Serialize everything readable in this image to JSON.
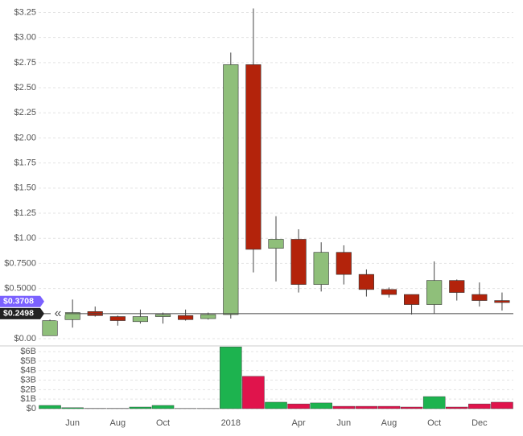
{
  "chart_data": [
    {
      "type": "candlestick",
      "categories": [
        null,
        "Jun",
        null,
        "Aug",
        null,
        "Oct",
        null,
        null,
        "2018",
        null,
        null,
        "Apr",
        null,
        "Jun",
        null,
        "Aug",
        null,
        "Oct",
        null,
        "Dec",
        null
      ],
      "open": [
        0.03,
        0.19,
        0.27,
        0.22,
        0.17,
        0.22,
        0.23,
        0.2,
        0.24,
        2.73,
        0.9,
        0.99,
        0.54,
        0.86,
        0.64,
        0.49,
        0.44,
        0.34,
        0.58,
        0.44,
        0.38
      ],
      "high": [
        0.19,
        0.39,
        0.32,
        0.23,
        0.29,
        0.26,
        0.29,
        0.26,
        2.85,
        3.29,
        1.22,
        1.09,
        0.96,
        0.93,
        0.69,
        0.51,
        0.44,
        0.77,
        0.59,
        0.56,
        0.46
      ],
      "low": [
        0.03,
        0.11,
        0.22,
        0.13,
        0.15,
        0.15,
        0.18,
        0.19,
        0.2,
        0.66,
        0.57,
        0.46,
        0.47,
        0.54,
        0.42,
        0.41,
        0.24,
        0.25,
        0.38,
        0.32,
        0.28
      ],
      "close": [
        0.18,
        0.26,
        0.23,
        0.18,
        0.22,
        0.24,
        0.19,
        0.24,
        2.73,
        0.89,
        0.99,
        0.54,
        0.86,
        0.64,
        0.49,
        0.44,
        0.34,
        0.58,
        0.46,
        0.38,
        0.36
      ],
      "up_color": "#8fbf7a",
      "down_color": "#b3230b",
      "ylim": [
        0,
        3.35
      ],
      "yticks": [
        {
          "value": 0,
          "label": "$0.00"
        },
        {
          "value": 0.5,
          "label": "$0.5000"
        },
        {
          "value": 0.75,
          "label": "$0.7500"
        },
        {
          "value": 1,
          "label": "$1.00"
        },
        {
          "value": 1.25,
          "label": "$1.25"
        },
        {
          "value": 1.5,
          "label": "$1.50"
        },
        {
          "value": 1.75,
          "label": "$1.75"
        },
        {
          "value": 2,
          "label": "$2.00"
        },
        {
          "value": 2.25,
          "label": "$2.25"
        },
        {
          "value": 2.5,
          "label": "$2.50"
        },
        {
          "value": 2.75,
          "label": "$2.75"
        },
        {
          "value": 3,
          "label": "$3.00"
        },
        {
          "value": 3.25,
          "label": "$3.25"
        }
      ],
      "price_markers": [
        {
          "value": 0.3708,
          "label": "$0.3708",
          "color": "#7b61ff"
        },
        {
          "value": 0.2498,
          "label": "$0.2498",
          "color": "#222222"
        }
      ],
      "grid": true
    },
    {
      "type": "bar",
      "values": [
        0.34,
        0.1,
        0.03,
        0.03,
        0.17,
        0.34,
        0.02,
        0.02,
        6.5,
        3.4,
        0.68,
        0.5,
        0.6,
        0.25,
        0.25,
        0.25,
        0.17,
        1.27,
        0.17,
        0.5,
        0.68
      ],
      "up_color": "#1db34f",
      "down_color": "#e0144c",
      "ylim": [
        0,
        6.6
      ],
      "yticks": [
        {
          "value": 0,
          "label": "$0"
        },
        {
          "value": 1,
          "label": "$1B"
        },
        {
          "value": 2,
          "label": "$2B"
        },
        {
          "value": 3,
          "label": "$3B"
        },
        {
          "value": 4,
          "label": "$4B"
        },
        {
          "value": 5,
          "label": "$5B"
        },
        {
          "value": 6,
          "label": "$6B"
        }
      ],
      "grid": true
    }
  ]
}
